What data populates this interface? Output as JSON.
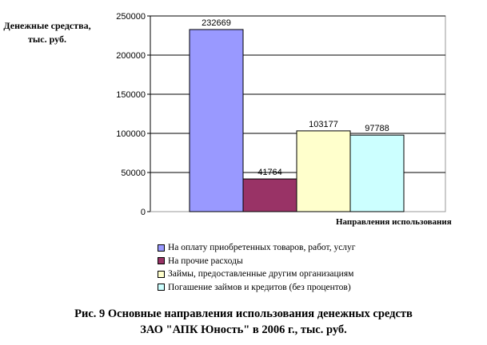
{
  "chart_data": {
    "type": "bar",
    "ylabel": "Денежные средства, тыс. руб.",
    "ylabel_lines": [
      "Денежные средства,",
      "тыс. руб."
    ],
    "xlabel": "Направления использования",
    "ylim": [
      0,
      250000
    ],
    "yticks": [
      0,
      50000,
      100000,
      150000,
      200000,
      250000
    ],
    "grid": true,
    "legend_position": "bottom",
    "series": [
      {
        "name": "На оплату приобретенных товаров, работ, услуг",
        "values": [
          232669
        ],
        "color": "#9999FF"
      },
      {
        "name": "На прочие расходы",
        "values": [
          41764
        ],
        "color": "#993366"
      },
      {
        "name": "Займы, предоставленные другим организациям",
        "values": [
          103177
        ],
        "color": "#FFFFCC"
      },
      {
        "name": "Погашение займов и кредитов (без процентов)",
        "values": [
          97788
        ],
        "color": "#CCFFFF"
      }
    ]
  },
  "caption": {
    "line1": "Рис. 9 Основные направления использования денежных средств",
    "line2": "ЗАО \"АПК Юность\" в 2006 г., тыс. руб."
  }
}
